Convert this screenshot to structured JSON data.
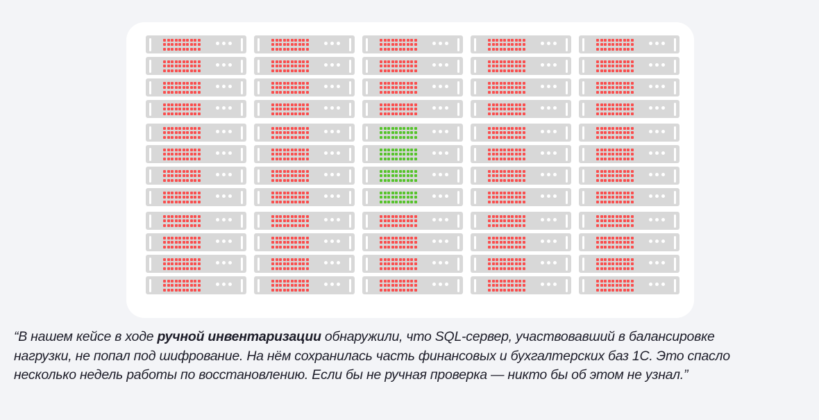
{
  "colors": {
    "page_bg": "#f3f4f7",
    "panel_bg": "#ffffff",
    "server_body": "#d8d8d8",
    "server_detail": "#ffffff",
    "led_red": "#fa4d4d",
    "led_green": "#55c32a",
    "quote_text": "#1c1c28"
  },
  "rack": {
    "columns": 5,
    "rows": 12,
    "group_size": 4,
    "led_cols": 10,
    "led_rows": 3,
    "status_dots": 3,
    "statuses": [
      [
        "red",
        "red",
        "red",
        "red",
        "red"
      ],
      [
        "red",
        "red",
        "red",
        "red",
        "red"
      ],
      [
        "red",
        "red",
        "red",
        "red",
        "red"
      ],
      [
        "red",
        "red",
        "red",
        "red",
        "red"
      ],
      [
        "red",
        "red",
        "green",
        "red",
        "red"
      ],
      [
        "red",
        "red",
        "green",
        "red",
        "red"
      ],
      [
        "red",
        "red",
        "green",
        "red",
        "red"
      ],
      [
        "red",
        "red",
        "green",
        "red",
        "red"
      ],
      [
        "red",
        "red",
        "red",
        "red",
        "red"
      ],
      [
        "red",
        "red",
        "red",
        "red",
        "red"
      ],
      [
        "red",
        "red",
        "red",
        "red",
        "red"
      ],
      [
        "red",
        "red",
        "red",
        "red",
        "red"
      ]
    ]
  },
  "quote": {
    "lead": "“В нашем кейсе в ходе ",
    "bold_phrase": "ручной инвентаризации",
    "rest": " обнаружили, что SQL-сервер, участвовавший в балансировке нагрузки, не попал под шифрование. На нём сохранилась часть финансовых и бухгалтерских баз 1С. Это спасло несколько недель работы по восстановлению. Если бы не ручная проверка — никто бы об этом не узнал.”"
  }
}
